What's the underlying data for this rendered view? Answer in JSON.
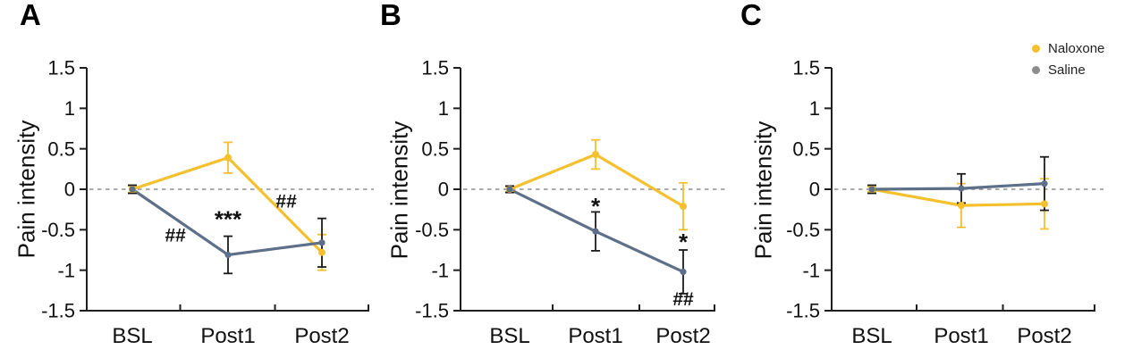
{
  "figure": {
    "ylabel": "Pain intensity",
    "categories": [
      "BSL",
      "Post1",
      "Post2"
    ],
    "colors": {
      "naloxone": "#F5C02E",
      "saline_line": "#5E7089",
      "saline_legend_dot": "#8C8C8C",
      "error_bar_black": "#1B1B1B",
      "zero_line": "#8F8F8F",
      "axis": "#1F1F1F",
      "text": "#111111"
    }
  },
  "legend": {
    "position": "top-right",
    "items": [
      {
        "label": "Naloxone",
        "color": "#F5C02E"
      },
      {
        "label": "Saline",
        "color": "#8C8C8C"
      }
    ]
  },
  "chart_data": [
    {
      "panel": "A",
      "type": "line",
      "categories": [
        "BSL",
        "Post1",
        "Post2"
      ],
      "xlabel": "",
      "ylabel": "Pain intensity",
      "ylim": [
        -1.5,
        1.5
      ],
      "yticks": [
        "1.5",
        "1",
        "0.5",
        "0",
        "-0.5",
        "-1",
        "-1.5"
      ],
      "zero_line": true,
      "series": [
        {
          "name": "Naloxone",
          "color": "#F5C02E",
          "error_color": "#F5C02E",
          "marker": "circle",
          "values": [
            0,
            0.39,
            -0.78
          ],
          "errors": [
            0.04,
            0.19,
            0.22
          ]
        },
        {
          "name": "Saline",
          "color": "#5E7089",
          "error_color": "#1B1B1B",
          "marker": "circle",
          "values": [
            0,
            -0.81,
            -0.66
          ],
          "errors": [
            0.05,
            0.23,
            0.3
          ]
        }
      ],
      "annotations": [
        {
          "text": "##",
          "x": 0.45,
          "y": -0.56
        },
        {
          "text": "***",
          "x": 1.0,
          "y": -0.29
        },
        {
          "text": "##",
          "x": 1.62,
          "y": -0.14
        }
      ]
    },
    {
      "panel": "B",
      "type": "line",
      "categories": [
        "BSL",
        "Post1",
        "Post2"
      ],
      "xlabel": "",
      "ylabel": "Pain intensity",
      "ylim": [
        -1.5,
        1.5
      ],
      "yticks": [
        "1.5",
        "1",
        "0.5",
        "0",
        "-0.5",
        "-1",
        "-1.5"
      ],
      "zero_line": true,
      "series": [
        {
          "name": "Naloxone",
          "color": "#F5C02E",
          "error_color": "#F5C02E",
          "marker": "circle",
          "values": [
            0,
            0.43,
            -0.21
          ],
          "errors": [
            0.03,
            0.18,
            0.29
          ]
        },
        {
          "name": "Saline",
          "color": "#5E7089",
          "error_color": "#1B1B1B",
          "marker": "circle",
          "values": [
            0,
            -0.52,
            -1.02
          ],
          "errors": [
            0.04,
            0.24,
            0.27
          ]
        }
      ],
      "annotations": [
        {
          "text": "*",
          "x": 1.0,
          "y": -0.13
        },
        {
          "text": "*",
          "x": 2.0,
          "y": -0.57
        },
        {
          "text": "##",
          "x": 2.0,
          "y": -1.35
        }
      ]
    },
    {
      "panel": "C",
      "type": "line",
      "categories": [
        "BSL",
        "Post1",
        "Post2"
      ],
      "xlabel": "",
      "ylabel": "Pain intensity",
      "ylim": [
        -1.5,
        1.5
      ],
      "yticks": [
        "1.5",
        "1",
        "0.5",
        "0",
        "-0.5",
        "-1",
        "-1.5"
      ],
      "zero_line": true,
      "legend": true,
      "series": [
        {
          "name": "Naloxone",
          "color": "#F5C02E",
          "error_color": "#F5C02E",
          "marker": "circle",
          "values": [
            0,
            -0.2,
            -0.18
          ],
          "errors": [
            0.03,
            0.27,
            0.31
          ]
        },
        {
          "name": "Saline",
          "color": "#5E7089",
          "error_color": "#1B1B1B",
          "marker": "circle",
          "values": [
            0,
            0.01,
            0.07
          ],
          "errors": [
            0.05,
            0.18,
            0.33
          ]
        }
      ],
      "annotations": []
    }
  ]
}
